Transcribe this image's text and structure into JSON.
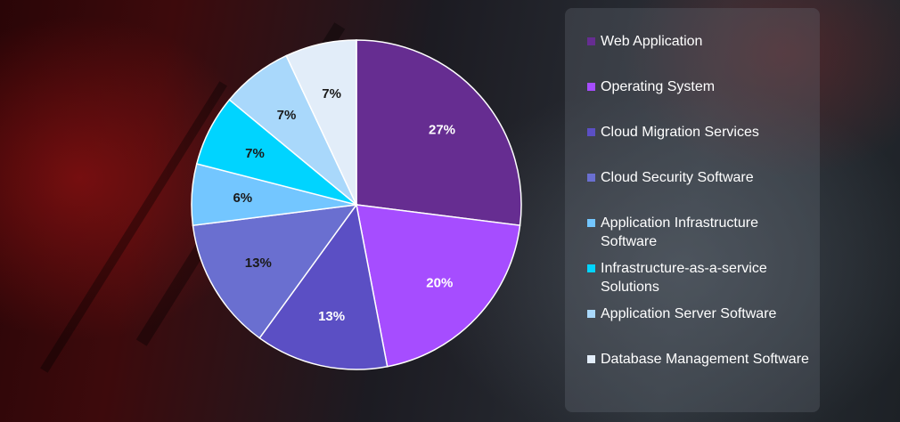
{
  "chart_data": {
    "type": "pie",
    "categories": [
      "Web Application",
      "Operating System",
      "Cloud Migration Services",
      "Cloud Security Software",
      "Application Infrastructure Software",
      "Infrastructure-as-a-service Solutions",
      "Application Server Software",
      "Database Management Software"
    ],
    "values": [
      27,
      20,
      13,
      13,
      6,
      7,
      7,
      7
    ],
    "data_labels": [
      "27%",
      "20%",
      "13%",
      "13%",
      "6%",
      "7%",
      "7%",
      "7%"
    ],
    "colors": [
      "#662d91",
      "#a64dff",
      "#5b4fc4",
      "#6a6fd0",
      "#73c6ff",
      "#00d4ff",
      "#a9d8fb",
      "#e2edf9"
    ],
    "label_colors": [
      "#ffffff",
      "#ffffff",
      "#ffffff",
      "#1a1a1a",
      "#1a1a1a",
      "#1a1a1a",
      "#1a1a1a",
      "#1a1a1a"
    ],
    "title": "",
    "legend_placement": "right"
  }
}
